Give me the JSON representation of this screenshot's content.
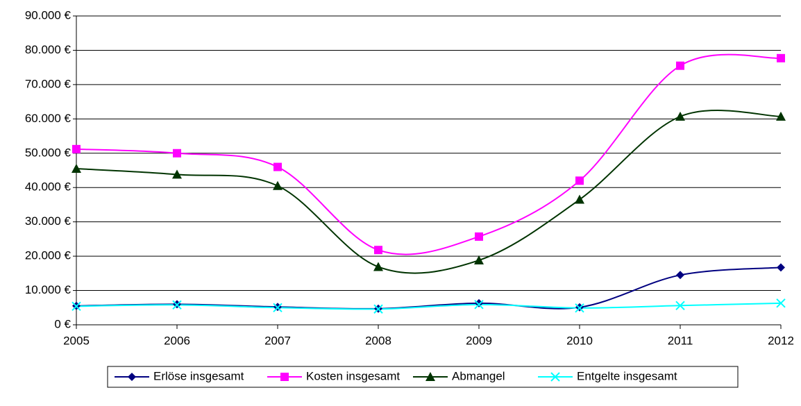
{
  "chart_data": {
    "type": "line",
    "smooth": true,
    "x": [
      2005,
      2006,
      2007,
      2008,
      2009,
      2010,
      2011,
      2012
    ],
    "xlim": [
      2005,
      2012
    ],
    "xticks": [
      2005,
      2006,
      2007,
      2008,
      2009,
      2010,
      2011,
      2012
    ],
    "ylim": [
      0,
      90000
    ],
    "yticks": [
      {
        "value": 0,
        "label": "0 €"
      },
      {
        "value": 10000,
        "label": "10.000 €"
      },
      {
        "value": 20000,
        "label": "20.000 €"
      },
      {
        "value": 30000,
        "label": "30.000 €"
      },
      {
        "value": 40000,
        "label": "40.000 €"
      },
      {
        "value": 50000,
        "label": "50.000 €"
      },
      {
        "value": 60000,
        "label": "60.000 €"
      },
      {
        "value": 70000,
        "label": "70.000 €"
      },
      {
        "value": 80000,
        "label": "80.000 €"
      },
      {
        "value": 90000,
        "label": "90.000 €"
      }
    ],
    "grid": true,
    "legend": "bottom",
    "series": [
      {
        "name": "Erlöse insgesamt",
        "color": "#000080",
        "marker": "diamond",
        "values": [
          5500,
          6000,
          5200,
          4700,
          6300,
          5100,
          14500,
          16700
        ]
      },
      {
        "name": "Kosten insgesamt",
        "color": "#ff00ff",
        "marker": "square",
        "values": [
          51200,
          50000,
          46000,
          21800,
          25700,
          42000,
          75500,
          77700
        ]
      },
      {
        "name": "Abmangel",
        "color": "#003300",
        "marker": "triangle",
        "values": [
          45500,
          43800,
          40500,
          16900,
          18800,
          36500,
          60700,
          60700
        ]
      },
      {
        "name": "Entgelte insgesamt",
        "color": "#00ffff",
        "marker": "x",
        "values": [
          5400,
          5800,
          5000,
          4600,
          5900,
          4900,
          5600,
          6300
        ]
      }
    ]
  }
}
